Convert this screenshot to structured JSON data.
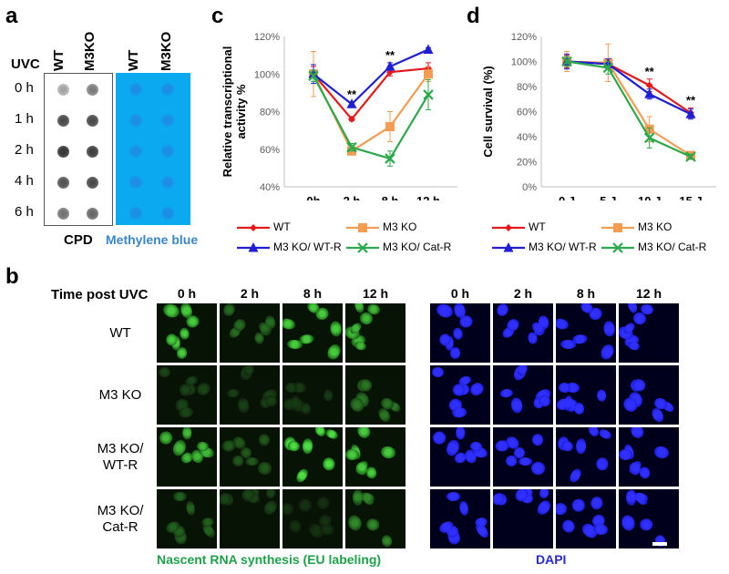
{
  "panels": {
    "a": "a",
    "b": "b",
    "c": "c",
    "d": "d"
  },
  "panel_a": {
    "uvc_label": "UVC",
    "col_wt": "WT",
    "col_m3ko": "M3KO",
    "rows": [
      "0 h",
      "1 h",
      "2 h",
      "4 h",
      "6 h"
    ],
    "cpd_label": "CPD",
    "mb_label": "Methylene blue",
    "cpd_intensity": [
      [
        0.25,
        0.45
      ],
      [
        0.7,
        0.7
      ],
      [
        0.8,
        0.75
      ],
      [
        0.65,
        0.7
      ],
      [
        0.5,
        0.55
      ]
    ],
    "colors": {
      "mb_bg": "#0aa9f0",
      "mb_dot": "#1d8ee6",
      "mb_text": "#3a86c8"
    }
  },
  "chart_data": [
    {
      "type": "line",
      "id": "c",
      "ylabel": "Relative transcriptional activity %",
      "categories": [
        "0h",
        "2 h",
        "8 h",
        "12 h"
      ],
      "ylim": [
        40,
        120
      ],
      "yticks": [
        "40%",
        "60%",
        "80%",
        "100%",
        "120%"
      ],
      "series": [
        {
          "name": "WT",
          "color": "#e31a1c",
          "marker": "diamond",
          "values": [
            100,
            76,
            101,
            103
          ],
          "err": [
            4,
            1,
            2,
            3
          ]
        },
        {
          "name": "M3 KO",
          "color": "#f39c52",
          "marker": "square",
          "values": [
            100,
            59,
            72,
            100
          ],
          "err": [
            12,
            2,
            8,
            4
          ]
        },
        {
          "name": "M3 KO/ WT-R",
          "color": "#1f1fd6",
          "marker": "triangle",
          "values": [
            100,
            84,
            104,
            113
          ],
          "err": [
            5,
            1,
            2,
            1
          ]
        },
        {
          "name": "M3 KO/ Cat-R",
          "color": "#2ca94a",
          "marker": "x",
          "values": [
            99,
            61,
            55,
            89
          ],
          "err": [
            3,
            2,
            4,
            8
          ]
        }
      ],
      "annotations": [
        {
          "at": "2 h",
          "text": "**"
        },
        {
          "at": "8 h",
          "text": "**"
        }
      ]
    },
    {
      "type": "line",
      "id": "d",
      "ylabel": "Cell survival (%)",
      "categories": [
        "0 J",
        "5 J",
        "10 J",
        "15 J"
      ],
      "ylim": [
        0,
        120
      ],
      "yticks": [
        "0%",
        "20%",
        "40%",
        "60%",
        "80%",
        "100%",
        "120%"
      ],
      "series": [
        {
          "name": "WT",
          "color": "#e31a1c",
          "marker": "diamond",
          "values": [
            100,
            98,
            81,
            59
          ],
          "err": [
            5,
            3,
            5,
            4
          ]
        },
        {
          "name": "M3 KO",
          "color": "#f39c52",
          "marker": "square",
          "values": [
            100,
            99,
            46,
            25
          ],
          "err": [
            8,
            15,
            10,
            2
          ]
        },
        {
          "name": "M3 KO/ WT-R",
          "color": "#1f1fd6",
          "marker": "triangle",
          "values": [
            100,
            98,
            74,
            58
          ],
          "err": [
            6,
            4,
            4,
            4
          ]
        },
        {
          "name": "M3 KO/ Cat-R",
          "color": "#2ca94a",
          "marker": "x",
          "values": [
            100,
            95,
            39,
            24
          ],
          "err": [
            4,
            5,
            8,
            2
          ]
        }
      ],
      "annotations": [
        {
          "at": "10 J",
          "text": "**"
        },
        {
          "at": "15 J",
          "text": "**"
        }
      ]
    }
  ],
  "legend": [
    "WT",
    "M3 KO",
    "M3 KO/ WT-R",
    "M3 KO/ Cat-R"
  ],
  "panel_b": {
    "time_title": "Time post UVC",
    "times": [
      "0 h",
      "2 h",
      "8 h",
      "12 h"
    ],
    "rows": [
      "WT",
      "M3 KO",
      "M3 KO/\nWT-R",
      "M3 KO/\nCat-R"
    ],
    "green_caption": "Nascent RNA synthesis (EU labeling)",
    "blue_caption": "DAPI",
    "green_intensity": [
      [
        0.85,
        0.35,
        0.85,
        0.75
      ],
      [
        0.15,
        0.12,
        0.1,
        0.4
      ],
      [
        0.75,
        0.25,
        0.95,
        0.85
      ],
      [
        0.3,
        0.15,
        0.05,
        0.5
      ]
    ],
    "colors": {
      "green_caption": "#1fa04a",
      "blue_caption": "#2b2bd0"
    }
  }
}
